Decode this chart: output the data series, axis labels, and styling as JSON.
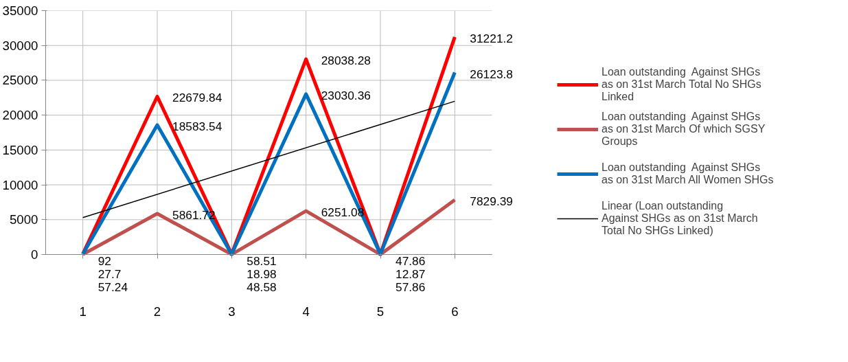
{
  "chart_data": {
    "type": "line",
    "x": [
      1,
      2,
      3,
      4,
      5,
      6
    ],
    "xlim": [
      0.5,
      6.5
    ],
    "xticks": [
      1,
      2,
      3,
      4,
      5,
      6
    ],
    "ylim": [
      0,
      35000
    ],
    "yticks": [
      0,
      5000,
      10000,
      15000,
      20000,
      25000,
      30000,
      35000
    ],
    "grid": true,
    "legend": "right",
    "marker": "none",
    "line_style": "solid",
    "series": [
      {
        "name": "Loan outstanding  Against SHGs as on 31st March Total No SHGs Linked",
        "color": "#ff0000",
        "values": [
          92,
          22679.84,
          58.51,
          28038.28,
          47.86,
          31221.2
        ],
        "value_labels": [
          "92",
          "22679.84",
          "58.51",
          "28038.28",
          "47.86",
          "31221.2"
        ]
      },
      {
        "name": "Loan outstanding  Against SHGs as on 31st March Of which SGSY Groups",
        "color": "#c0504d",
        "values": [
          27.7,
          5861.72,
          18.98,
          6251.08,
          12.87,
          7829.39
        ],
        "value_labels": [
          "27.7",
          "5861.72",
          "18.98",
          "6251.08",
          "12.87",
          "7829.39"
        ]
      },
      {
        "name": "Loan outstanding  Against SHGs as on 31st March All Women SHGs",
        "color": "#0070c0",
        "values": [
          57.24,
          18583.54,
          48.58,
          23030.36,
          57.86,
          26123.8
        ],
        "value_labels": [
          "57.24",
          "18583.54",
          "48.58",
          "23030.36",
          "57.86",
          "26123.8"
        ]
      },
      {
        "name": "Linear (Loan outstanding  Against SHGs as on 31st March Total No SHGs Linked)",
        "color": "#000000",
        "type": "line",
        "x": [
          1,
          6
        ],
        "values": [
          5300,
          22000
        ]
      }
    ]
  }
}
